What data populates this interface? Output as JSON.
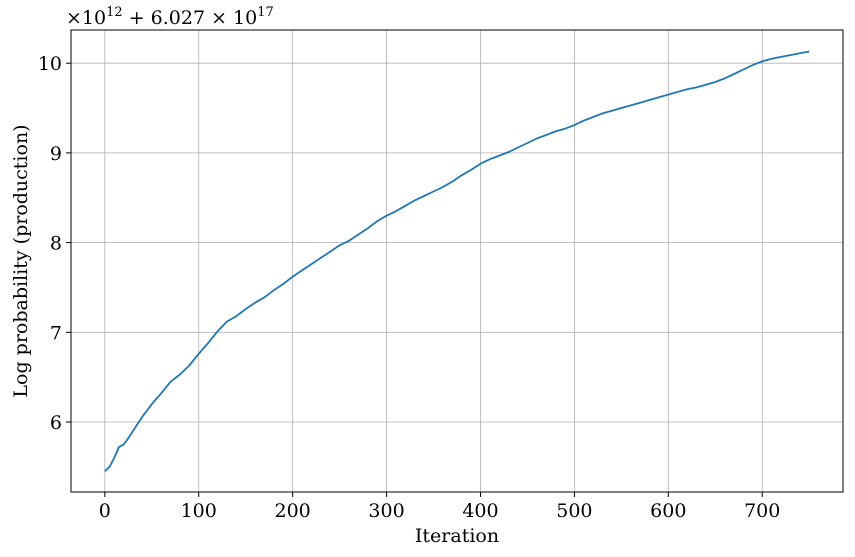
{
  "chart_data": {
    "type": "line",
    "title": "",
    "xlabel": "Iteration",
    "ylabel": "Log probability (production)",
    "offset_text": "×10^12 + 6.027 × 10^17",
    "offset_parts": {
      "prefix": "×10",
      "exp1": "12",
      "middle": " + 6.027 × 10",
      "exp2": "17"
    },
    "xlim": [
      -36,
      786
    ],
    "ylim": [
      5.22,
      10.37
    ],
    "xticks": [
      0,
      100,
      200,
      300,
      400,
      500,
      600,
      700
    ],
    "xtick_labels": [
      "0",
      "100",
      "200",
      "300",
      "400",
      "500",
      "600",
      "700"
    ],
    "yticks": [
      6,
      7,
      8,
      9,
      10
    ],
    "ytick_labels": [
      "6",
      "7",
      "8",
      "9",
      "10"
    ],
    "grid": true,
    "colors": {
      "line": "#1f77b4",
      "grid": "#b0b0b0"
    },
    "series": [
      {
        "x": [
          0,
          5,
          10,
          15,
          20,
          25,
          30,
          35,
          40,
          45,
          50,
          60,
          70,
          80,
          90,
          100,
          110,
          120,
          130,
          140,
          150,
          160,
          170,
          180,
          190,
          200,
          210,
          220,
          230,
          240,
          250,
          260,
          270,
          280,
          290,
          300,
          310,
          320,
          330,
          340,
          350,
          360,
          370,
          380,
          390,
          400,
          410,
          420,
          430,
          440,
          450,
          460,
          470,
          480,
          490,
          500,
          510,
          520,
          530,
          540,
          550,
          560,
          570,
          580,
          590,
          600,
          610,
          620,
          630,
          640,
          650,
          660,
          670,
          680,
          690,
          700,
          710,
          720,
          730,
          740,
          750
        ],
        "y": [
          5.45,
          5.5,
          5.6,
          5.72,
          5.75,
          5.82,
          5.9,
          5.98,
          6.06,
          6.13,
          6.2,
          6.32,
          6.45,
          6.53,
          6.63,
          6.76,
          6.88,
          7.01,
          7.12,
          7.18,
          7.26,
          7.33,
          7.39,
          7.47,
          7.54,
          7.62,
          7.69,
          7.76,
          7.83,
          7.9,
          7.97,
          8.02,
          8.09,
          8.16,
          8.24,
          8.3,
          8.35,
          8.41,
          8.47,
          8.52,
          8.57,
          8.62,
          8.68,
          8.75,
          8.81,
          8.88,
          8.93,
          8.97,
          9.01,
          9.06,
          9.11,
          9.16,
          9.2,
          9.24,
          9.27,
          9.31,
          9.36,
          9.4,
          9.44,
          9.47,
          9.5,
          9.53,
          9.56,
          9.59,
          9.62,
          9.65,
          9.68,
          9.71,
          9.73,
          9.76,
          9.79,
          9.83,
          9.88,
          9.93,
          9.98,
          10.02,
          10.05,
          10.07,
          10.09,
          10.11,
          10.13
        ]
      }
    ]
  }
}
